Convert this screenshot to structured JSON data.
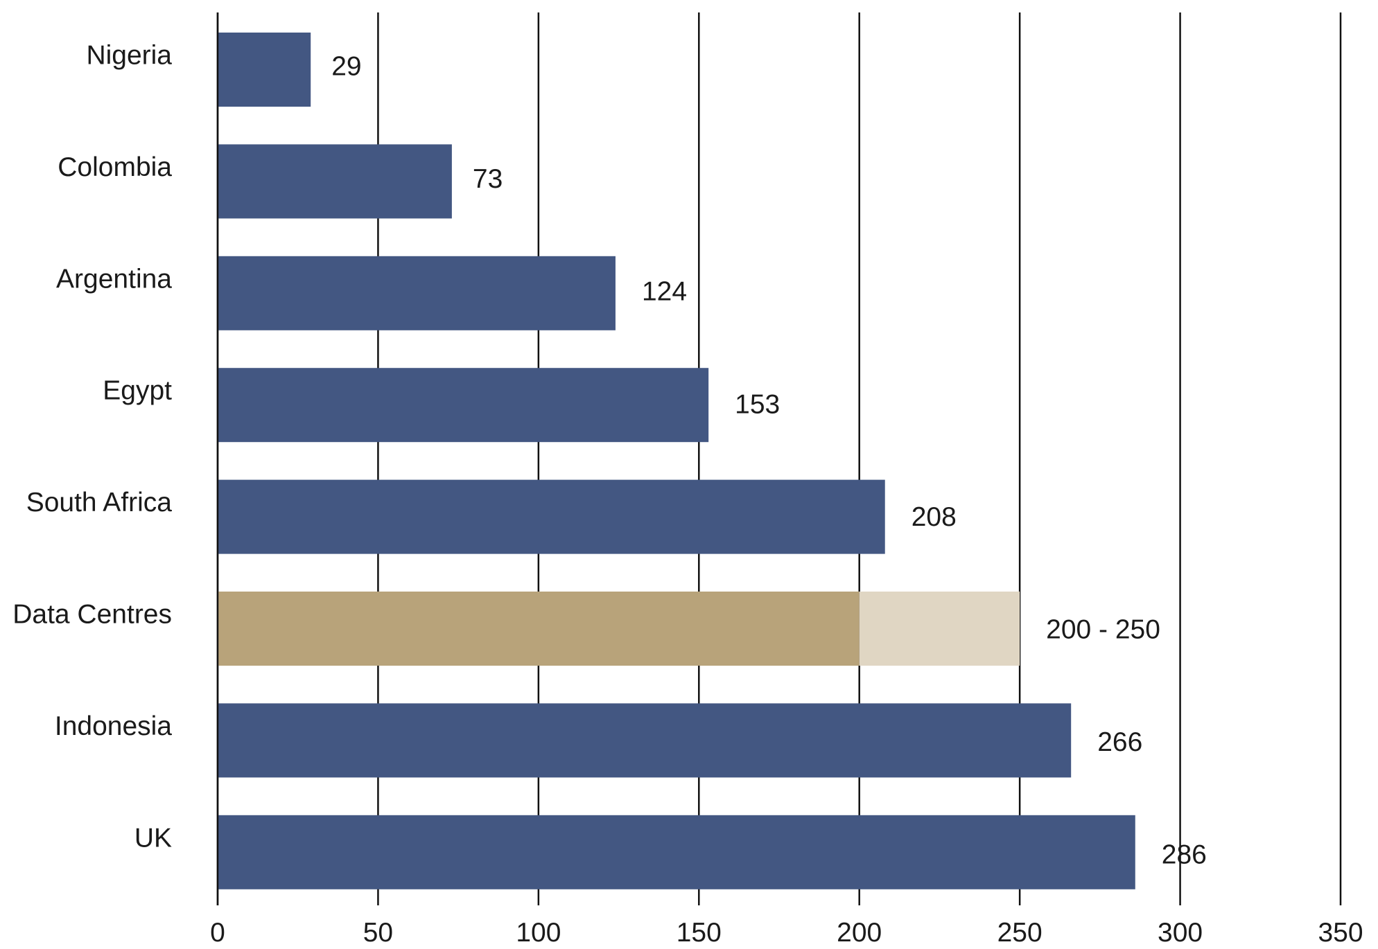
{
  "chart_data": {
    "type": "bar",
    "orientation": "horizontal",
    "categories": [
      "Nigeria",
      "Colombia",
      "Argentina",
      "Egypt",
      "South Africa",
      "Data Centres",
      "Indonesia",
      "UK"
    ],
    "values": [
      29,
      73,
      124,
      153,
      208,
      200,
      266,
      286
    ],
    "ranges": [
      null,
      null,
      null,
      null,
      null,
      [
        200,
        250
      ],
      null,
      null
    ],
    "value_labels": [
      "29",
      "73",
      "124",
      "153",
      "208",
      "200 - 250",
      "266",
      "286"
    ],
    "highlight_category": "Data Centres",
    "xlim": [
      0,
      350
    ],
    "xticks": [
      0,
      50,
      100,
      150,
      200,
      250,
      300,
      350
    ],
    "xtick_labels": [
      "0",
      "50",
      "100",
      "150",
      "200",
      "250",
      "300",
      "350"
    ],
    "title": "",
    "xlabel": "",
    "ylabel": "",
    "grid": "vertical",
    "legend": "none",
    "colors": {
      "bar": "#435782",
      "highlight_low": "#b8a37a",
      "highlight_range": "#e0d6c3",
      "grid": "#111111",
      "text": "#1a1a1a"
    }
  }
}
